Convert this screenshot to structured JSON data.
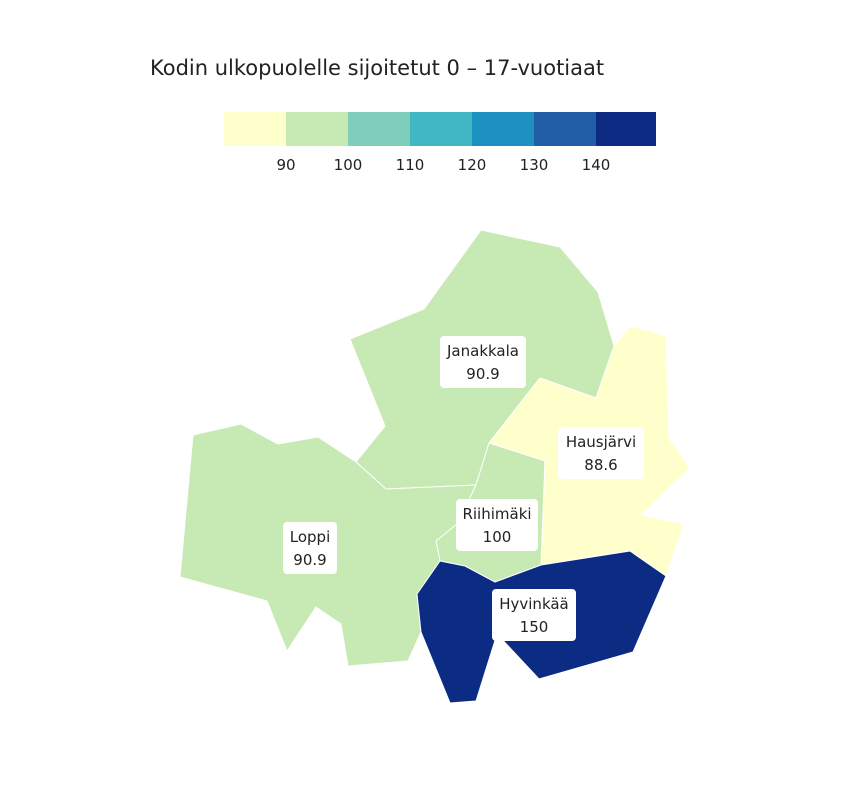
{
  "title": "Kodin ulkopuolelle sijoitetut 0 – 17-vuotiaat",
  "legend": {
    "ticks": [
      "90",
      "100",
      "110",
      "120",
      "130",
      "140"
    ],
    "colors": [
      "#ffffcc",
      "#c7e9b4",
      "#7fcdbb",
      "#41b6c4",
      "#1d91c0",
      "#225ea8",
      "#0c2c84"
    ]
  },
  "regions": {
    "janakkala": {
      "name": "Janakkala",
      "value": "90.9",
      "color": "#c7e9b4"
    },
    "loppi": {
      "name": "Loppi",
      "value": "90.9",
      "color": "#c7e9b4"
    },
    "riihimaki": {
      "name": "Riihimäki",
      "value": "100",
      "color": "#c7e9b4"
    },
    "hausjarvi": {
      "name": "Hausjärvi",
      "value": "88.6",
      "color": "#ffffcc"
    },
    "hyvinkaa": {
      "name": "Hyvinkää",
      "value": "150",
      "color": "#0c2c84"
    }
  }
}
